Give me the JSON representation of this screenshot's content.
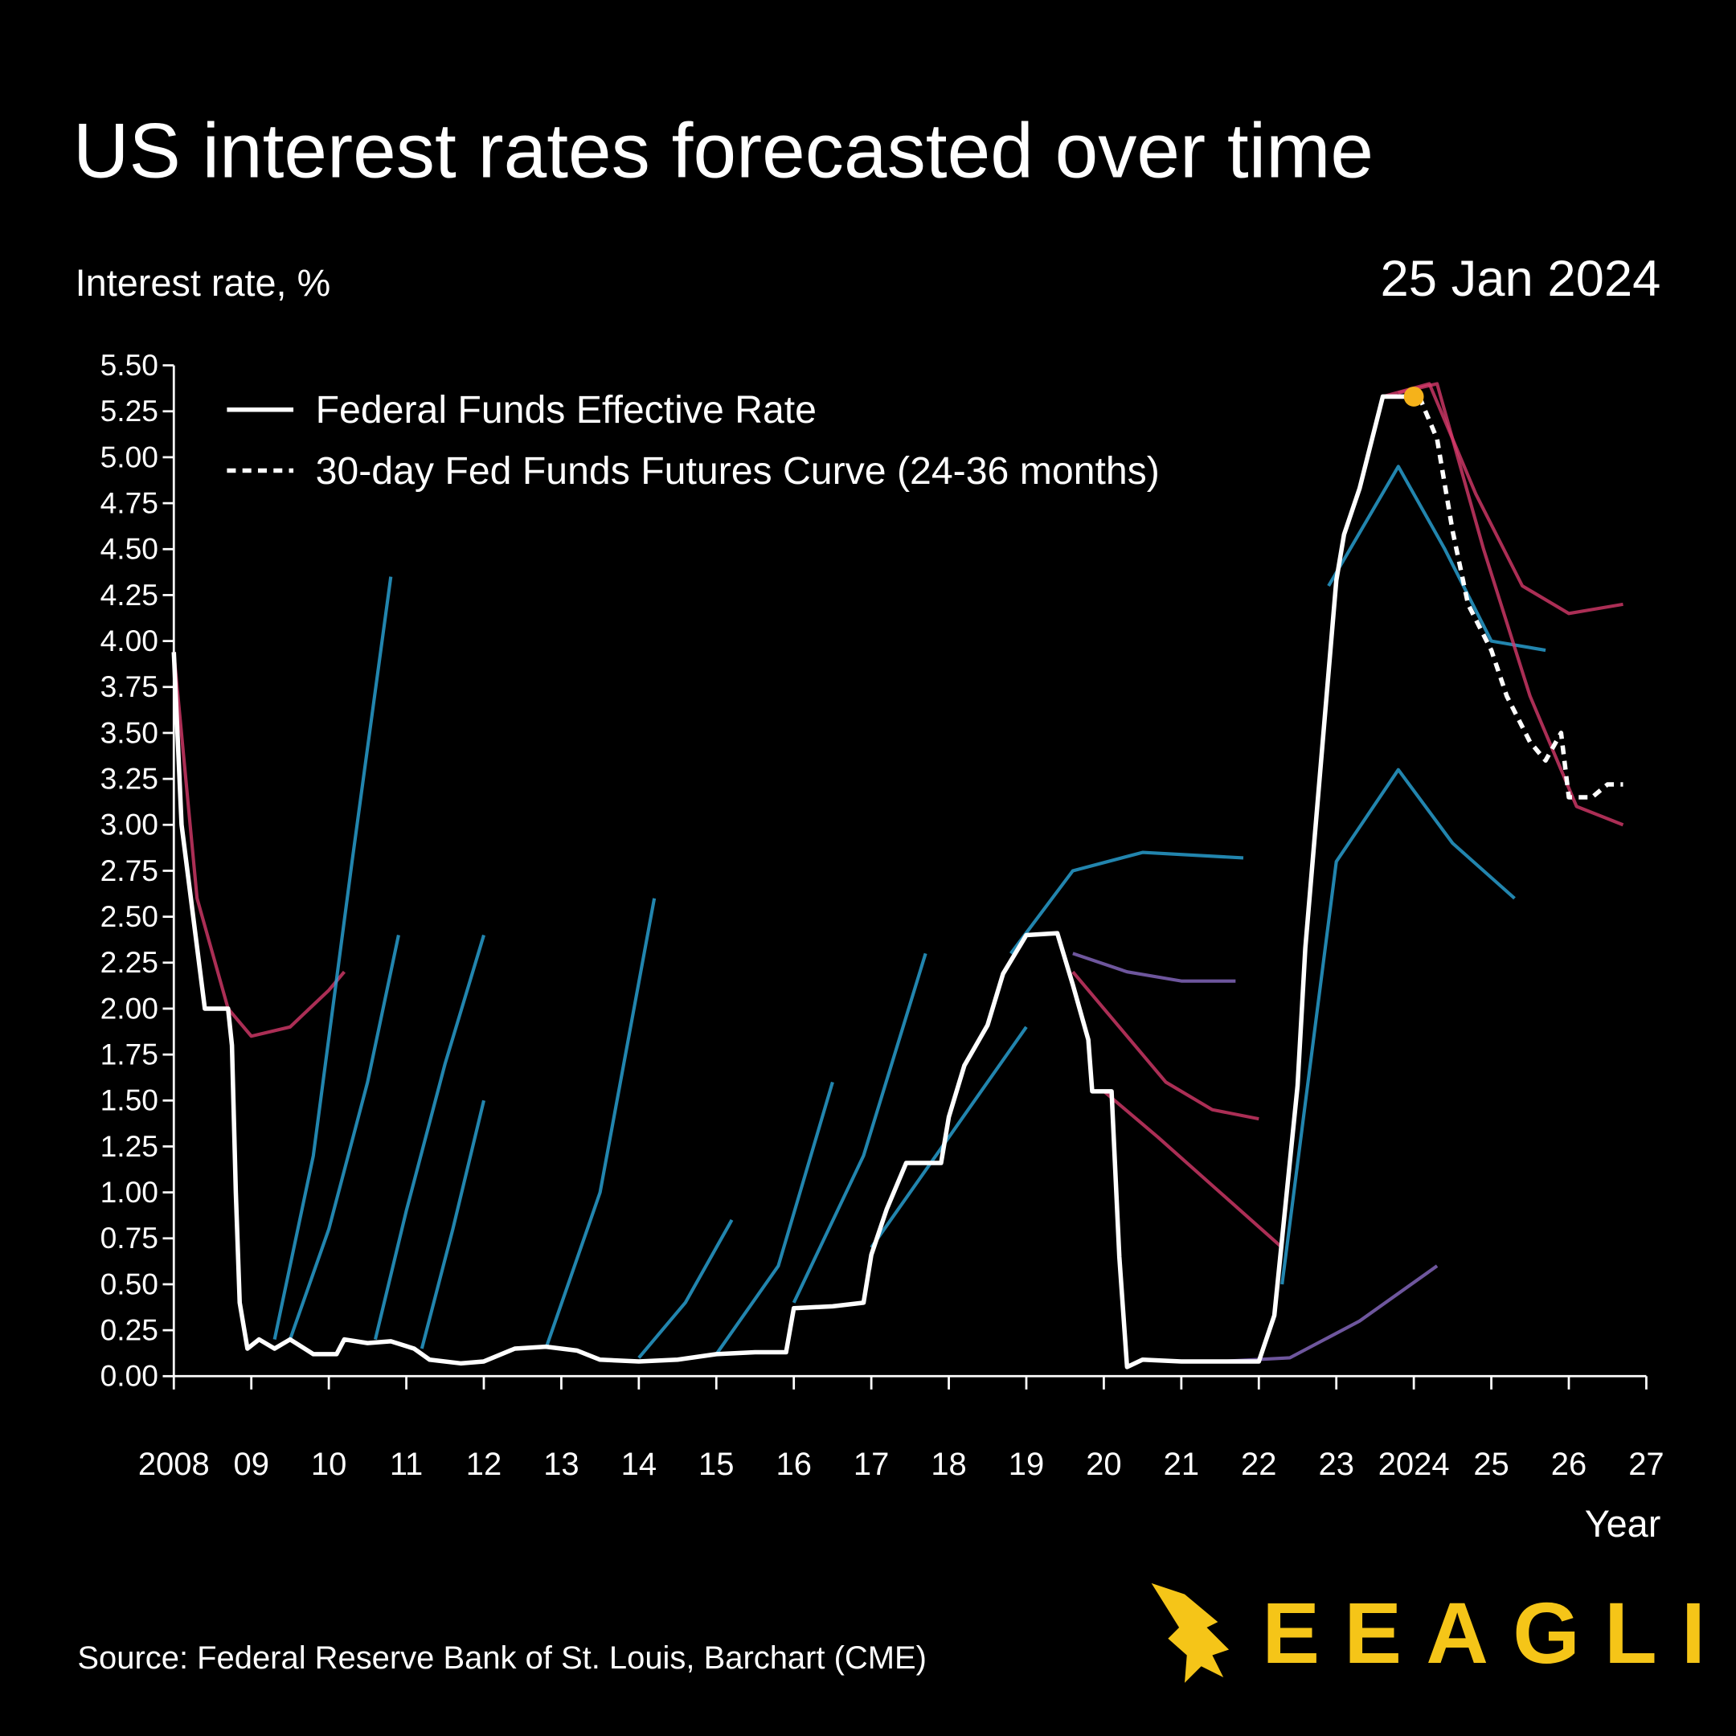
{
  "chart_data": {
    "type": "line",
    "title": "US interest rates forecasted over time",
    "date": "25 Jan 2024",
    "y_label": "Interest rate, %",
    "x_label": "Year",
    "source": "Source: Federal Reserve Bank of St. Louis, Barchart (CME)",
    "logo": "EEAGLI",
    "xlim": [
      2008,
      2027
    ],
    "ylim": [
      0,
      5.5
    ],
    "xticks": [
      2008,
      {
        "value": 2009,
        "label": "09"
      },
      {
        "value": 2010,
        "label": "10"
      },
      {
        "value": 2011,
        "label": "11"
      },
      {
        "value": 2012,
        "label": "12"
      },
      {
        "value": 2013,
        "label": "13"
      },
      {
        "value": 2014,
        "label": "14"
      },
      {
        "value": 2015,
        "label": "15"
      },
      {
        "value": 2016,
        "label": "16"
      },
      {
        "value": 2017,
        "label": "17"
      },
      {
        "value": 2018,
        "label": "18"
      },
      {
        "value": 2019,
        "label": "19"
      },
      {
        "value": 2020,
        "label": "20"
      },
      {
        "value": 2021,
        "label": "21"
      },
      {
        "value": 2022,
        "label": "22"
      },
      {
        "value": 2023,
        "label": "23"
      },
      2024,
      {
        "value": 2025,
        "label": "25"
      },
      {
        "value": 2026,
        "label": "26"
      },
      {
        "value": 2027,
        "label": "27"
      }
    ],
    "yticks": [
      {
        "value": 0,
        "label": "0.00"
      },
      {
        "value": 0.25,
        "label": "0.25"
      },
      {
        "value": 0.5,
        "label": "0.50"
      },
      {
        "value": 0.75,
        "label": "0.75"
      },
      {
        "value": 1,
        "label": "1.00"
      },
      {
        "value": 1.25,
        "label": "1.25"
      },
      {
        "value": 1.5,
        "label": "1.50"
      },
      {
        "value": 1.75,
        "label": "1.75"
      },
      {
        "value": 2,
        "label": "2.00"
      },
      {
        "value": 2.25,
        "label": "2.25"
      },
      {
        "value": 2.5,
        "label": "2.50"
      },
      {
        "value": 2.75,
        "label": "2.75"
      },
      {
        "value": 3,
        "label": "3.00"
      },
      {
        "value": 3.25,
        "label": "3.25"
      },
      {
        "value": 3.5,
        "label": "3.50"
      },
      {
        "value": 3.75,
        "label": "3.75"
      },
      {
        "value": 4,
        "label": "4.00"
      },
      {
        "value": 4.25,
        "label": "4.25"
      },
      {
        "value": 4.5,
        "label": "4.50"
      },
      {
        "value": 4.75,
        "label": "4.75"
      },
      {
        "value": 5,
        "label": "5.00"
      },
      {
        "value": 5.25,
        "label": "5.25"
      },
      {
        "value": 5.5,
        "label": "5.50"
      }
    ],
    "grid": false,
    "legend": "top-left",
    "forecasts": [
      {
        "color": "#d63a6a",
        "x": [
          2008.0,
          2008.3,
          2008.7,
          2009.0,
          2009.5,
          2010.0,
          2010.2
        ],
        "values": [
          3.94,
          2.6,
          2.0,
          1.85,
          1.9,
          2.1,
          2.2
        ]
      },
      {
        "color": "#2aa6d9",
        "x": [
          2009.3,
          2009.8,
          2010.3,
          2010.8
        ],
        "values": [
          0.2,
          1.2,
          2.8,
          4.35
        ]
      },
      {
        "color": "#2aa6d9",
        "x": [
          2009.5,
          2010.0,
          2010.5,
          2010.9
        ],
        "values": [
          0.2,
          0.8,
          1.6,
          2.4
        ]
      },
      {
        "color": "#2aa6d9",
        "x": [
          2010.6,
          2011.0,
          2011.5,
          2012.0
        ],
        "values": [
          0.2,
          0.9,
          1.7,
          2.4
        ]
      },
      {
        "color": "#2aa6d9",
        "x": [
          2011.2,
          2011.6,
          2012.0
        ],
        "values": [
          0.15,
          0.8,
          1.5
        ]
      },
      {
        "color": "#2aa6d9",
        "x": [
          2012.8,
          2013.5,
          2014.2
        ],
        "values": [
          0.15,
          1.0,
          2.6
        ]
      },
      {
        "color": "#2aa6d9",
        "x": [
          2014.0,
          2014.6,
          2015.2
        ],
        "values": [
          0.1,
          0.4,
          0.85
        ]
      },
      {
        "color": "#2aa6d9",
        "x": [
          2015.0,
          2015.8,
          2016.5
        ],
        "values": [
          0.12,
          0.6,
          1.6
        ]
      },
      {
        "color": "#2aa6d9",
        "x": [
          2016.0,
          2016.9,
          2017.7
        ],
        "values": [
          0.4,
          1.2,
          2.3
        ]
      },
      {
        "color": "#2aa6d9",
        "x": [
          2017.0,
          2018.0,
          2019.0
        ],
        "values": [
          0.7,
          1.3,
          1.9
        ]
      },
      {
        "color": "#2aa6d9",
        "x": [
          2018.8,
          2019.6,
          2020.5,
          2021.8
        ],
        "values": [
          2.3,
          2.75,
          2.85,
          2.82
        ]
      },
      {
        "color": "#8a6bc4",
        "x": [
          2019.6,
          2020.3,
          2021.0,
          2021.7
        ],
        "values": [
          2.3,
          2.2,
          2.15,
          2.15
        ]
      },
      {
        "color": "#d63a6a",
        "x": [
          2019.6,
          2020.2,
          2020.8,
          2021.4,
          2022.0
        ],
        "values": [
          2.2,
          1.9,
          1.6,
          1.45,
          1.4
        ]
      },
      {
        "color": "#d63a6a",
        "x": [
          2020.0,
          2020.7,
          2021.5,
          2022.3
        ],
        "values": [
          1.55,
          1.3,
          1.0,
          0.7
        ]
      },
      {
        "color": "#8a6bc4",
        "x": [
          2021.5,
          2022.4,
          2023.3,
          2024.3
        ],
        "values": [
          0.08,
          0.1,
          0.3,
          0.6
        ]
      },
      {
        "color": "#2aa6d9",
        "x": [
          2022.3,
          2023.0,
          2023.8,
          2024.5,
          2025.3
        ],
        "values": [
          0.5,
          2.8,
          3.3,
          2.9,
          2.6
        ]
      },
      {
        "color": "#2aa6d9",
        "x": [
          2022.9,
          2023.8,
          2024.4,
          2025.0,
          2025.7
        ],
        "values": [
          4.3,
          4.95,
          4.5,
          4.0,
          3.95
        ]
      },
      {
        "color": "#d63a6a",
        "x": [
          2023.6,
          2024.2,
          2024.8,
          2025.4,
          2026.0,
          2026.7
        ],
        "values": [
          5.33,
          5.4,
          4.8,
          4.3,
          4.15,
          4.2
        ]
      },
      {
        "color": "#d63a6a",
        "x": [
          2023.8,
          2024.3,
          2024.9,
          2025.5,
          2026.1,
          2026.7
        ],
        "values": [
          5.35,
          5.4,
          4.5,
          3.7,
          3.1,
          3.0
        ]
      }
    ],
    "series": [
      {
        "name": "Federal Funds Effective Rate",
        "color": "#ffffff",
        "style": "solid",
        "x": [
          2008.0,
          2008.1,
          2008.4,
          2008.7,
          2008.75,
          2008.8,
          2008.85,
          2008.95,
          2009.1,
          2009.3,
          2009.5,
          2009.8,
          2010.1,
          2010.2,
          2010.5,
          2010.8,
          2011.1,
          2011.3,
          2011.7,
          2012.0,
          2012.4,
          2012.8,
          2013.2,
          2013.5,
          2014.0,
          2014.5,
          2015.0,
          2015.5,
          2015.9,
          2016.0,
          2016.5,
          2016.9,
          2017.0,
          2017.2,
          2017.45,
          2017.9,
          2018.0,
          2018.2,
          2018.5,
          2018.7,
          2019.0,
          2019.4,
          2019.6,
          2019.8,
          2019.85,
          2020.1,
          2020.2,
          2020.3,
          2020.5,
          2021.0,
          2021.5,
          2022.0,
          2022.2,
          2022.5,
          2022.6,
          2022.75,
          2022.9,
          2023.0,
          2023.1,
          2023.3,
          2023.45,
          2023.6,
          2024.0
        ],
        "values": [
          3.94,
          3.0,
          2.0,
          2.0,
          1.8,
          1.0,
          0.4,
          0.15,
          0.2,
          0.15,
          0.2,
          0.12,
          0.12,
          0.2,
          0.18,
          0.19,
          0.15,
          0.09,
          0.07,
          0.08,
          0.15,
          0.16,
          0.14,
          0.09,
          0.08,
          0.09,
          0.12,
          0.13,
          0.13,
          0.37,
          0.38,
          0.4,
          0.66,
          0.91,
          1.16,
          1.16,
          1.41,
          1.69,
          1.91,
          2.19,
          2.4,
          2.41,
          2.13,
          1.83,
          1.55,
          1.55,
          0.65,
          0.05,
          0.09,
          0.08,
          0.08,
          0.08,
          0.33,
          1.58,
          2.33,
          3.08,
          3.83,
          4.33,
          4.58,
          4.83,
          5.08,
          5.33,
          5.33
        ]
      },
      {
        "name": "30-day Fed Funds Futures Curve (24-36 months)",
        "color": "#ffffff",
        "style": "dashed",
        "x": [
          2024.07,
          2024.3,
          2024.5,
          2024.7,
          2025.0,
          2025.2,
          2025.5,
          2025.7,
          2025.9,
          2026.0,
          2026.3,
          2026.5,
          2026.7
        ],
        "values": [
          5.33,
          5.1,
          4.6,
          4.2,
          3.95,
          3.7,
          3.45,
          3.35,
          3.5,
          3.15,
          3.15,
          3.22,
          3.22
        ]
      }
    ],
    "highlight": {
      "color": "#f5b21a",
      "x": 2024.0,
      "value": 5.33
    }
  }
}
